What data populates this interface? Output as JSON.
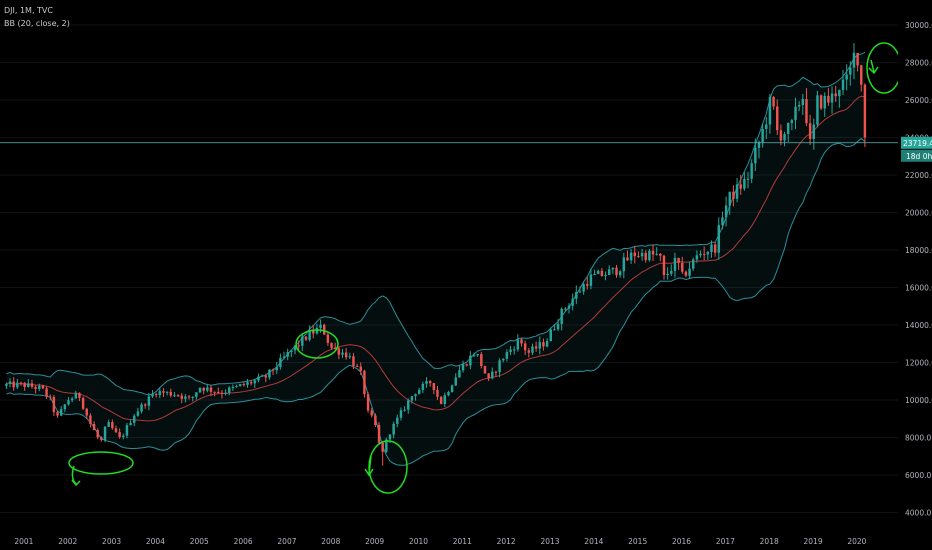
{
  "legend": {
    "title": "DJI, 1M, TVC",
    "indicator": "BB (20, close, 2)"
  },
  "price_axis": {
    "labels": [
      "32000.0",
      "30000.0",
      "28000.0",
      "26000.0",
      "24000.0",
      "22000.0",
      "20000.0",
      "18000.0",
      "16000.0",
      "14000.0",
      "12000.0",
      "10000.0",
      "8000.0",
      "6000.0",
      "4000.0"
    ],
    "last_price": "23719.4",
    "countdown": "18d 0h"
  },
  "time_axis": {
    "labels": [
      "2001",
      "2002",
      "2003",
      "2004",
      "2005",
      "2006",
      "2007",
      "2008",
      "2009",
      "2010",
      "2011",
      "2012",
      "2013",
      "2014",
      "2015",
      "2016",
      "2017",
      "2018",
      "2019",
      "2020"
    ]
  },
  "colors": {
    "background": "#000000",
    "up": "#26a69a",
    "down": "#ef5350",
    "band": "#2a8f9a",
    "basis": "#b23a3a",
    "annotation": "#22dd22",
    "last_price_line": "#5fb7b8",
    "axis_text": "#b2b5be"
  },
  "chart_data": {
    "type": "candlestick",
    "symbol": "DJI",
    "interval": "1M",
    "ylim": [
      4000,
      32000
    ],
    "x_range": [
      2000.5,
      2020.55
    ],
    "indicator": "Bollinger Bands (20, close, 2)",
    "last_price": 23719.4,
    "close_anchors": [
      [
        2000.6,
        10800
      ],
      [
        2001.0,
        10800
      ],
      [
        2001.4,
        10600
      ],
      [
        2001.6,
        10000
      ],
      [
        2001.75,
        9000
      ],
      [
        2002.0,
        10000
      ],
      [
        2002.25,
        10300
      ],
      [
        2002.5,
        8800
      ],
      [
        2002.75,
        7700
      ],
      [
        2002.9,
        8800
      ],
      [
        2003.2,
        7900
      ],
      [
        2003.5,
        9200
      ],
      [
        2004.0,
        10450
      ],
      [
        2004.5,
        10300
      ],
      [
        2004.8,
        10000
      ],
      [
        2005.0,
        10700
      ],
      [
        2005.5,
        10400
      ],
      [
        2006.0,
        10800
      ],
      [
        2006.5,
        11200
      ],
      [
        2007.0,
        12400
      ],
      [
        2007.5,
        13500
      ],
      [
        2007.8,
        13900
      ],
      [
        2008.0,
        12800
      ],
      [
        2008.4,
        12400
      ],
      [
        2008.7,
        11300
      ],
      [
        2008.85,
        9300
      ],
      [
        2009.0,
        8800
      ],
      [
        2009.15,
        7100
      ],
      [
        2009.35,
        8300
      ],
      [
        2009.6,
        9300
      ],
      [
        2009.9,
        10400
      ],
      [
        2010.3,
        11000
      ],
      [
        2010.5,
        9800
      ],
      [
        2010.9,
        11500
      ],
      [
        2011.3,
        12600
      ],
      [
        2011.6,
        11000
      ],
      [
        2011.9,
        12200
      ],
      [
        2012.3,
        13200
      ],
      [
        2012.5,
        12500
      ],
      [
        2012.9,
        13100
      ],
      [
        2013.3,
        14800
      ],
      [
        2013.9,
        16500
      ],
      [
        2014.5,
        16900
      ],
      [
        2014.9,
        17800
      ],
      [
        2015.5,
        17700
      ],
      [
        2015.6,
        16500
      ],
      [
        2015.9,
        17500
      ],
      [
        2016.0,
        16500
      ],
      [
        2016.4,
        17800
      ],
      [
        2016.8,
        18200
      ],
      [
        2016.9,
        19800
      ],
      [
        2017.1,
        20800
      ],
      [
        2017.5,
        21800
      ],
      [
        2017.9,
        24700
      ],
      [
        2018.05,
        26100
      ],
      [
        2018.2,
        24100
      ],
      [
        2018.5,
        24500
      ],
      [
        2018.75,
        26400
      ],
      [
        2018.85,
        25100
      ],
      [
        2018.95,
        23300
      ],
      [
        2019.1,
        25900
      ],
      [
        2019.4,
        26000
      ],
      [
        2019.6,
        26800
      ],
      [
        2019.8,
        27000
      ],
      [
        2019.95,
        28500
      ],
      [
        2020.05,
        28250
      ],
      [
        2020.15,
        25400
      ],
      [
        2020.25,
        21900
      ]
    ],
    "bollinger_samples": [
      {
        "x": 2003.0,
        "upper": 10300,
        "basis": 8600,
        "lower": 7300
      },
      {
        "x": 2007.8,
        "upper": 14200,
        "basis": 13400,
        "lower": 12200
      },
      {
        "x": 2009.25,
        "upper": 15600,
        "basis": 11300,
        "lower": 6800
      },
      {
        "x": 2017.9,
        "upper": 24500,
        "basis": 21000,
        "lower": 17000
      },
      {
        "x": 2020.2,
        "upper": 29800,
        "basis": 27000,
        "lower": 23500
      }
    ],
    "annotations": [
      "circle",
      "circle",
      "circle",
      "circle"
    ]
  }
}
